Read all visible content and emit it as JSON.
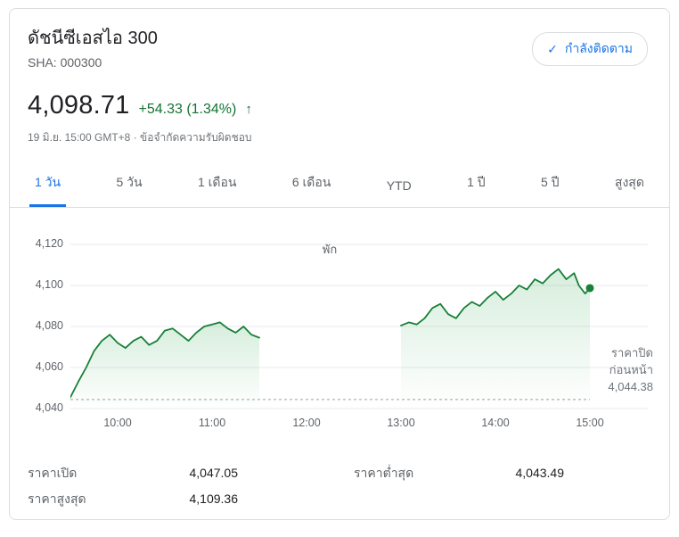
{
  "header": {
    "title": "ดัชนีซีเอสไอ 300",
    "exchange": "SHA: 000300",
    "follow_button_label": "กำลังติดตาม",
    "check_icon": "✓"
  },
  "quote": {
    "price": "4,098.71",
    "change": "+54.33 (1.34%)",
    "arrow": "↑",
    "timestamp": "19 มิ.ย. 15:00 GMT+8",
    "separator": "·",
    "disclaimer": "ข้อจำกัดความรับผิดชอบ",
    "up_color": "#137333"
  },
  "tabs": [
    {
      "label": "1 วัน",
      "active": true
    },
    {
      "label": "5 วัน",
      "active": false
    },
    {
      "label": "1 เดือน",
      "active": false
    },
    {
      "label": "6 เดือน",
      "active": false
    },
    {
      "label": "YTD",
      "active": false
    },
    {
      "label": "1 ปี",
      "active": false
    },
    {
      "label": "5 ปี",
      "active": false
    },
    {
      "label": "สูงสุด",
      "active": false
    }
  ],
  "chart": {
    "break_label": "พัก",
    "prev_close_line1": "ราคาปิด",
    "prev_close_line2": "ก่อนหน้า",
    "prev_close_value": "4,044.38"
  },
  "chart_data": {
    "type": "line",
    "title": "ดัชนีซีเอสไอ 300 — 1 วัน",
    "x_axis_ticks": [
      "10:00",
      "11:00",
      "12:00",
      "13:00",
      "14:00",
      "15:00"
    ],
    "x_axis_tick_minutes": [
      600,
      660,
      720,
      780,
      840,
      900
    ],
    "y_axis_ticks": [
      "4,120",
      "4,100",
      "4,080",
      "4,060",
      "4,040"
    ],
    "ylim": [
      4040,
      4120
    ],
    "xlim_minutes": [
      570,
      900
    ],
    "previous_close": 4044.38,
    "last_price": 4098.71,
    "line_color": "#188038",
    "fill_color": "#34a853",
    "grid": true,
    "legend": "none",
    "series": [
      {
        "name": "morning-session",
        "points": [
          [
            570,
            4045.5
          ],
          [
            575,
            4053
          ],
          [
            580,
            4060
          ],
          [
            585,
            4068
          ],
          [
            590,
            4073
          ],
          [
            595,
            4076
          ],
          [
            600,
            4072
          ],
          [
            605,
            4069.5
          ],
          [
            610,
            4073
          ],
          [
            615,
            4075
          ],
          [
            620,
            4071
          ],
          [
            625,
            4073
          ],
          [
            630,
            4078
          ],
          [
            635,
            4079
          ],
          [
            640,
            4076
          ],
          [
            645,
            4073
          ],
          [
            650,
            4077
          ],
          [
            655,
            4080
          ],
          [
            660,
            4081
          ],
          [
            665,
            4082
          ],
          [
            670,
            4079
          ],
          [
            675,
            4077
          ],
          [
            680,
            4080
          ],
          [
            685,
            4076
          ],
          [
            690,
            4074.5
          ]
        ]
      },
      {
        "name": "afternoon-session",
        "points": [
          [
            780,
            4080.5
          ],
          [
            785,
            4082
          ],
          [
            790,
            4081
          ],
          [
            795,
            4084
          ],
          [
            800,
            4089
          ],
          [
            805,
            4091
          ],
          [
            810,
            4086
          ],
          [
            815,
            4084
          ],
          [
            820,
            4089
          ],
          [
            825,
            4092
          ],
          [
            830,
            4090
          ],
          [
            835,
            4094
          ],
          [
            840,
            4097
          ],
          [
            845,
            4093
          ],
          [
            850,
            4096
          ],
          [
            855,
            4100
          ],
          [
            860,
            4098
          ],
          [
            865,
            4103
          ],
          [
            870,
            4101
          ],
          [
            875,
            4105
          ],
          [
            880,
            4108
          ],
          [
            885,
            4103
          ],
          [
            890,
            4106
          ],
          [
            893,
            4100
          ],
          [
            897,
            4096
          ],
          [
            900,
            4098.71
          ]
        ]
      }
    ]
  },
  "stats": {
    "rows": [
      {
        "label": "ราคาเปิด",
        "value": "4,047.05"
      },
      {
        "label": "ราคาต่ำสุด",
        "value": "4,043.49"
      },
      {
        "label": "ราคาสูงสุด",
        "value": "4,109.36"
      }
    ]
  }
}
